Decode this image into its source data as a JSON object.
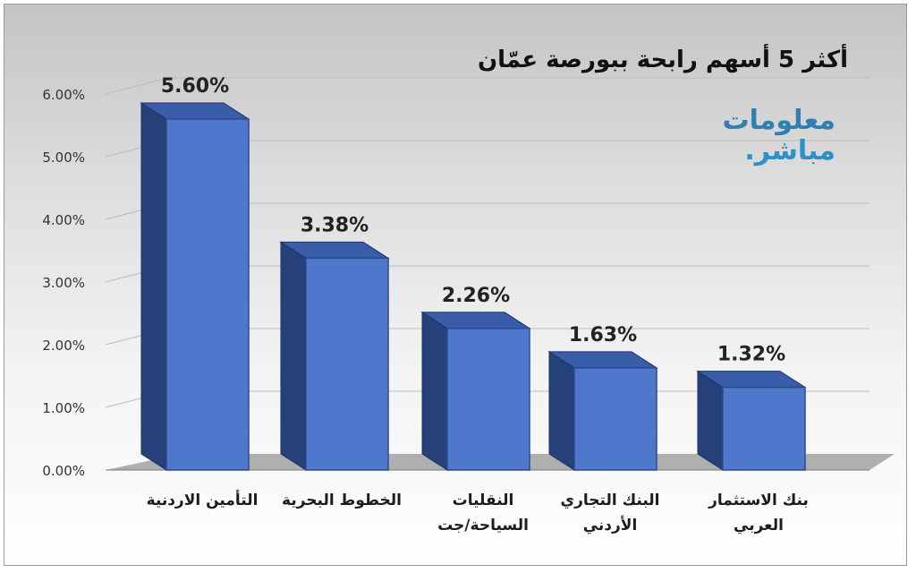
{
  "chart_data": {
    "type": "bar",
    "title": "أكثر 5 أسهم رابحة ببورصة عمّان",
    "categories": [
      [
        "التأمين الاردنية"
      ],
      [
        "الخطوط البحرية"
      ],
      [
        "النقليات",
        "السياحة/جت"
      ],
      [
        "البنك التجاري",
        "الأردني"
      ],
      [
        "بنك الاستثمار",
        "العربي"
      ]
    ],
    "values": [
      5.6,
      3.38,
      2.26,
      1.63,
      1.32
    ],
    "data_labels": [
      "5.60%",
      "3.38%",
      "2.26%",
      "1.63%",
      "1.32%"
    ],
    "y_ticks": [
      "0.00%",
      "1.00%",
      "2.00%",
      "3.00%",
      "4.00%",
      "5.00%",
      "6.00%"
    ],
    "ylim": [
      0,
      6
    ],
    "unit": "%",
    "grid": true,
    "legend": "none",
    "style": "3d",
    "colors": {
      "bar_front": "#4f78cc",
      "bar_side": "#26407a",
      "bar_top": "#3a5daa",
      "floor": "#a6a6a6"
    }
  },
  "logo": {
    "line1": "معلومات",
    "line2": "مباشر."
  }
}
